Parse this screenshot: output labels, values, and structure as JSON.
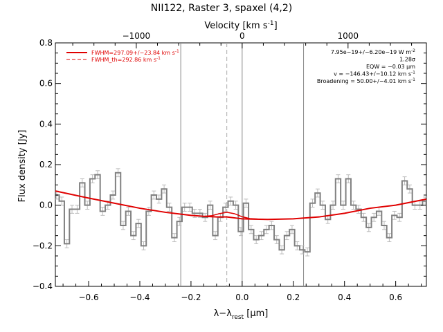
{
  "chart_data": {
    "type": "line",
    "title": "NII122, Raster 3, spaxel (4,2)",
    "xlabel": "λ−λ",
    "xlabel_sub": "rest",
    "xlabel_unit": " [μm]",
    "ylabel": "Flux density [Jy]",
    "top_axis_label": "Velocity [km s",
    "top_axis_label_sup": "-1",
    "top_axis_label_end": "]",
    "xlim": [
      -0.73,
      0.72
    ],
    "ylim": [
      -0.4,
      0.8
    ],
    "x_ticks": [
      -0.6,
      -0.4,
      -0.2,
      0.0,
      0.2,
      0.4,
      0.6
    ],
    "x_tick_labels": [
      "−0.6",
      "−0.4",
      "−0.2",
      "0.0",
      "0.2",
      "0.4",
      "0.6"
    ],
    "y_ticks": [
      -0.4,
      -0.2,
      0.0,
      0.2,
      0.4,
      0.6,
      0.8
    ],
    "y_tick_labels": [
      "−0.4",
      "−0.2",
      "0.0",
      "0.2",
      "0.4",
      "0.6",
      "0.8"
    ],
    "top_ticks_velocity": [
      -1000,
      0,
      1000
    ],
    "top_tick_labels": [
      "−1000",
      "0",
      "1000"
    ],
    "vertical_lines": [
      -0.24,
      0.0,
      0.24
    ],
    "dashed_vertical_line": -0.06,
    "legend": [
      {
        "label": "FWHM=297.09+/−23.84 km s",
        "sup": "-1",
        "style": "solid",
        "color": "#e00000"
      },
      {
        "label": "FWHM_th=292.86 km s",
        "sup": "-1",
        "style": "dashed",
        "color": "#e00000"
      }
    ],
    "annotations": [
      {
        "text": "7.95e−19+/−6.20e−19 W m",
        "sup": "-2"
      },
      {
        "text": "1.28σ",
        "sup": ""
      },
      {
        "text": "EQW = −0.03 μm",
        "sup": ""
      },
      {
        "text": "v = −146.43+/−10.12 km s",
        "sup": "-1"
      },
      {
        "text": "Broadening = 50.00+/−4.01 km s",
        "sup": "-1"
      }
    ],
    "series": [
      {
        "style": "step",
        "color": "#808080",
        "x": [
          -0.725,
          -0.705,
          -0.685,
          -0.665,
          -0.645,
          -0.625,
          -0.605,
          -0.585,
          -0.565,
          -0.545,
          -0.525,
          -0.505,
          -0.485,
          -0.465,
          -0.445,
          -0.425,
          -0.405,
          -0.385,
          -0.365,
          -0.345,
          -0.325,
          -0.305,
          -0.285,
          -0.265,
          -0.245,
          -0.225,
          -0.205,
          -0.185,
          -0.165,
          -0.145,
          -0.125,
          -0.105,
          -0.085,
          -0.065,
          -0.045,
          -0.025,
          -0.005,
          0.015,
          0.035,
          0.055,
          0.075,
          0.095,
          0.115,
          0.135,
          0.155,
          0.175,
          0.195,
          0.215,
          0.235,
          0.255,
          0.275,
          0.295,
          0.315,
          0.335,
          0.355,
          0.375,
          0.395,
          0.415,
          0.435,
          0.455,
          0.475,
          0.495,
          0.515,
          0.535,
          0.555,
          0.575,
          0.595,
          0.615,
          0.635,
          0.655,
          0.675,
          0.695,
          0.715
        ],
        "values": [
          0.05,
          0.02,
          -0.19,
          -0.02,
          -0.02,
          0.11,
          0.0,
          0.13,
          0.15,
          -0.03,
          0.0,
          0.05,
          0.16,
          -0.1,
          -0.03,
          -0.15,
          -0.09,
          -0.2,
          -0.03,
          0.05,
          0.03,
          0.08,
          -0.01,
          -0.16,
          -0.08,
          -0.01,
          -0.01,
          -0.04,
          -0.04,
          -0.06,
          0.0,
          -0.15,
          -0.06,
          -0.01,
          0.02,
          0.0,
          -0.13,
          0.01,
          -0.12,
          -0.17,
          -0.15,
          -0.12,
          -0.1,
          -0.17,
          -0.22,
          -0.15,
          -0.12,
          -0.2,
          -0.22,
          -0.23,
          0.01,
          0.06,
          0.0,
          -0.07,
          0.0,
          0.13,
          0.0,
          0.13,
          0.0,
          -0.02,
          -0.06,
          -0.11,
          -0.06,
          -0.03,
          -0.1,
          -0.16,
          -0.05,
          -0.06,
          0.12,
          0.08,
          0.0,
          0.0,
          0.02
        ],
        "errors": [
          0.02,
          0.02,
          0.02,
          0.02,
          0.02,
          0.02,
          0.02,
          0.02,
          0.02,
          0.02,
          0.02,
          0.02,
          0.02,
          0.02,
          0.02,
          0.02,
          0.02,
          0.02,
          0.02,
          0.02,
          0.02,
          0.02,
          0.02,
          0.02,
          0.02,
          0.02,
          0.02,
          0.02,
          0.02,
          0.02,
          0.02,
          0.02,
          0.02,
          0.02,
          0.02,
          0.02,
          0.02,
          0.02,
          0.02,
          0.02,
          0.02,
          0.02,
          0.02,
          0.02,
          0.02,
          0.02,
          0.02,
          0.02,
          0.02,
          0.02,
          0.02,
          0.02,
          0.02,
          0.02,
          0.02,
          0.02,
          0.02,
          0.02,
          0.02,
          0.02,
          0.02,
          0.02,
          0.02,
          0.02,
          0.02,
          0.02,
          0.02,
          0.02,
          0.02,
          0.02,
          0.02,
          0.02,
          0.02
        ]
      },
      {
        "style": "solid",
        "color": "#e00000",
        "x": [
          -0.73,
          -0.6,
          -0.5,
          -0.4,
          -0.3,
          -0.2,
          -0.15,
          -0.1,
          -0.06,
          -0.02,
          0.0,
          0.05,
          0.1,
          0.2,
          0.3,
          0.4,
          0.5,
          0.6,
          0.72
        ],
        "values": [
          0.07,
          0.035,
          0.01,
          -0.015,
          -0.035,
          -0.05,
          -0.055,
          -0.058,
          -0.058,
          -0.064,
          -0.067,
          -0.069,
          -0.07,
          -0.067,
          -0.058,
          -0.04,
          -0.015,
          0.0,
          0.03
        ]
      },
      {
        "style": "solid",
        "color": "#e00000",
        "x": [
          -0.2,
          -0.15,
          -0.12,
          -0.09,
          -0.06,
          -0.03,
          0.0,
          0.03,
          0.06
        ],
        "values": [
          -0.05,
          -0.055,
          -0.052,
          -0.042,
          -0.035,
          -0.042,
          -0.057,
          -0.066,
          -0.068
        ]
      }
    ]
  }
}
